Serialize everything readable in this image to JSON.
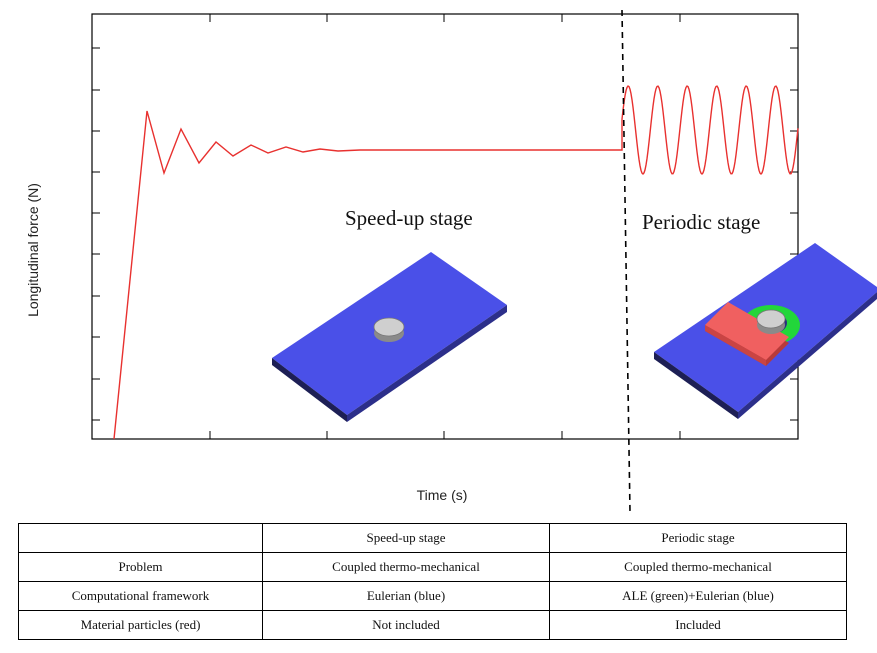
{
  "plot": {
    "ylabel": "Longitudinal force (N)",
    "xlabel": "Time (s)",
    "line_color": "#e8312f"
  },
  "stages": {
    "speedup_label": "Speed-up stage",
    "periodic_label": "Periodic stage"
  },
  "illustration": {
    "plate_color": "#4a50e8",
    "tool_color": "#c8c8c8",
    "ale_region_color": "#22d63a",
    "particles_color": "#f05a5a"
  },
  "table": {
    "headers": [
      "",
      "Speed-up stage",
      "Periodic stage"
    ],
    "rows": [
      [
        "Problem",
        "Coupled thermo-mechanical",
        "Coupled thermo-mechanical"
      ],
      [
        "Computational framework",
        "Eulerian (blue)",
        "ALE (green)+Eulerian (blue)"
      ],
      [
        "Material particles (red)",
        "Not included",
        "Included"
      ]
    ]
  }
}
